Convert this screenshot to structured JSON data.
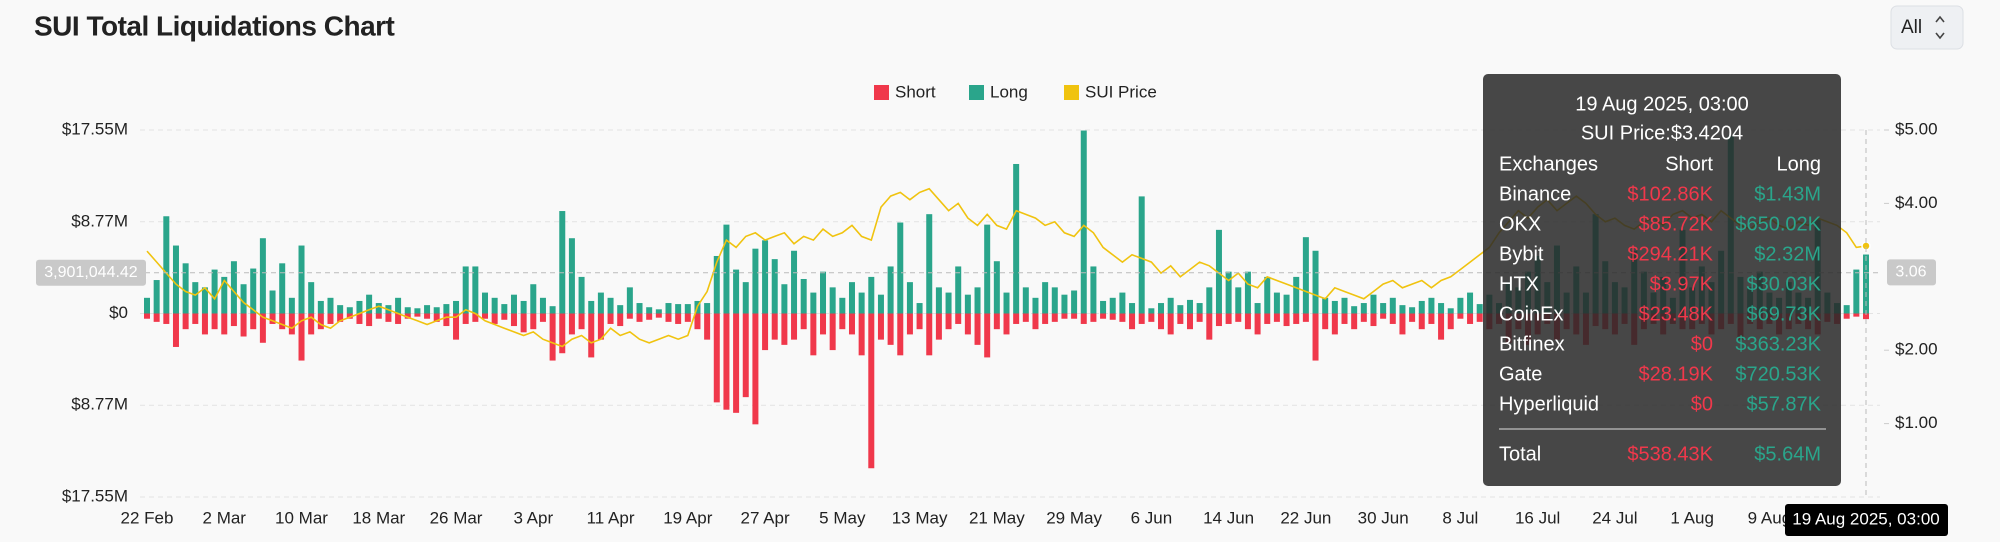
{
  "chart_data": {
    "type": "bar",
    "title": "SUI Total Liquidations Chart",
    "control": "All",
    "categories": [
      "22 Feb",
      null,
      null,
      null,
      null,
      null,
      null,
      null,
      "2 Mar",
      null,
      null,
      null,
      null,
      null,
      null,
      null,
      "10 Mar",
      null,
      null,
      null,
      null,
      null,
      null,
      null,
      "18 Mar",
      null,
      null,
      null,
      null,
      null,
      null,
      null,
      "26 Mar",
      null,
      null,
      null,
      null,
      null,
      null,
      null,
      "3 Apr",
      null,
      null,
      null,
      null,
      null,
      null,
      null,
      "11 Apr",
      null,
      null,
      null,
      null,
      null,
      null,
      null,
      "19 Apr",
      null,
      null,
      null,
      null,
      null,
      null,
      null,
      "27 Apr",
      null,
      null,
      null,
      null,
      null,
      null,
      null,
      "5 May",
      null,
      null,
      null,
      null,
      null,
      null,
      null,
      "13 May",
      null,
      null,
      null,
      null,
      null,
      null,
      null,
      "21 May",
      null,
      null,
      null,
      null,
      null,
      null,
      null,
      "29 May",
      null,
      null,
      null,
      null,
      null,
      null,
      null,
      "6 Jun",
      null,
      null,
      null,
      null,
      null,
      null,
      null,
      "14 Jun",
      null,
      null,
      null,
      null,
      null,
      null,
      null,
      "22 Jun",
      null,
      null,
      null,
      null,
      null,
      null,
      null,
      "30 Jun",
      null,
      null,
      null,
      null,
      null,
      null,
      null,
      "8 Jul",
      null,
      null,
      null,
      null,
      null,
      null,
      null,
      "16 Jul",
      null,
      null,
      null,
      null,
      null,
      null,
      null,
      "24 Jul",
      null,
      null,
      null,
      null,
      null,
      null,
      null,
      "1 Aug",
      null,
      null,
      null,
      null,
      null,
      null,
      null,
      "9 Aug",
      null,
      null,
      null,
      null,
      null,
      null,
      null,
      null,
      null,
      "19 Aug 2025, 03:00"
    ],
    "series": [
      {
        "name": "Short",
        "color": "#f0384b",
        "values": [
          -500000,
          -800000,
          -1000000,
          -3200000,
          -1500000,
          -1000000,
          -2000000,
          -1500000,
          -2000000,
          -1200000,
          -2200000,
          -1500000,
          -2800000,
          -1000000,
          -1500000,
          -2000000,
          -4500000,
          -2000000,
          -1500000,
          -1000000,
          -800000,
          -500000,
          -1000000,
          -1200000,
          -500000,
          -800000,
          -1000000,
          -500000,
          -300000,
          -500000,
          -800000,
          -1200000,
          -2500000,
          -1000000,
          -800000,
          -500000,
          -1000000,
          -600000,
          -1200000,
          -1800000,
          -1500000,
          -800000,
          -4500000,
          -3800000,
          -2000000,
          -1500000,
          -4200000,
          -2500000,
          -1000000,
          -1200000,
          -500000,
          -800000,
          -600000,
          -400000,
          -800000,
          -1000000,
          -800000,
          -1500000,
          -2500000,
          -8500000,
          -9200000,
          -9500000,
          -8000000,
          -10600000,
          -3500000,
          -2500000,
          -3000000,
          -2500000,
          -1500000,
          -4000000,
          -2000000,
          -3500000,
          -1500000,
          -2000000,
          -4000000,
          -14800000,
          -2500000,
          -3000000,
          -4000000,
          -2000000,
          -1500000,
          -4000000,
          -2500000,
          -1500000,
          -1000000,
          -2000000,
          -3000000,
          -4200000,
          -1500000,
          -2000000,
          -1000000,
          -800000,
          -1500000,
          -1000000,
          -800000,
          -500000,
          -500000,
          -1000000,
          -800000,
          -500000,
          -600000,
          -800000,
          -1500000,
          -1000000,
          -800000,
          -1500000,
          -2000000,
          -1000000,
          -1500000,
          -800000,
          -2500000,
          -1200000,
          -1000000,
          -800000,
          -1500000,
          -2000000,
          -1000000,
          -800000,
          -1200000,
          -1000000,
          -800000,
          -4500000,
          -1500000,
          -2000000,
          -1000000,
          -1500000,
          -800000,
          -1200000,
          -500000,
          -1000000,
          -2000000,
          -800000,
          -1500000,
          -1000000,
          -2500000,
          -1500000,
          -500000,
          -1000000,
          -800000,
          -1500000,
          -1000000,
          -2800000,
          -1500000,
          -3000000,
          -2000000,
          -1000000,
          -2500000,
          -1500000,
          -2000000,
          -3000000,
          -1200000,
          -1500000,
          -2000000,
          -1000000,
          -3000000,
          -1500000,
          -1000000,
          -2000000,
          -1000000,
          -1500000,
          -1500000,
          -1000000,
          -2000000,
          -1500000,
          -1000000,
          -2500000,
          -1000000,
          -1500000,
          -1000000,
          -2000000,
          -1500000,
          -1000000,
          -1500000,
          -2000000,
          -800000,
          -1000000,
          -500000,
          -300000,
          -538430
        ]
      },
      {
        "name": "Long",
        "color": "#2aa58b",
        "values": [
          1500000,
          3200000,
          9300000,
          6500000,
          4800000,
          3000000,
          2500000,
          4200000,
          3500000,
          5000000,
          2800000,
          4300000,
          7200000,
          2200000,
          4800000,
          1500000,
          6500000,
          3000000,
          1200000,
          1500000,
          800000,
          600000,
          1200000,
          1800000,
          1000000,
          800000,
          1500000,
          600000,
          500000,
          800000,
          600000,
          900000,
          1200000,
          4500000,
          4500000,
          2000000,
          1500000,
          900000,
          1800000,
          1200000,
          2800000,
          1500000,
          700000,
          9800000,
          7200000,
          3500000,
          1200000,
          2000000,
          1500000,
          800000,
          2500000,
          1000000,
          600000,
          400000,
          1000000,
          900000,
          900000,
          1200000,
          1000000,
          5500000,
          8500000,
          4200000,
          3000000,
          6200000,
          7000000,
          5200000,
          2800000,
          6000000,
          3300000,
          2000000,
          4000000,
          2500000,
          1500000,
          3000000,
          2000000,
          3500000,
          1800000,
          4500000,
          8700000,
          3000000,
          1000000,
          9500000,
          2500000,
          2000000,
          4500000,
          1800000,
          2500000,
          8500000,
          5000000,
          2000000,
          14300000,
          2500000,
          1500000,
          3000000,
          2500000,
          1800000,
          2200000,
          17500000,
          4500000,
          1200000,
          1500000,
          2000000,
          1000000,
          11200000,
          500000,
          1000000,
          1500000,
          800000,
          1300000,
          1000000,
          2500000,
          8000000,
          4000000,
          2500000,
          4000000,
          1000000,
          3500000,
          2000000,
          1800000,
          3500000,
          7300000,
          6000000,
          1500000,
          1200000,
          1500000,
          700000,
          1000000,
          1800000,
          1000000,
          1500000,
          800000,
          600000,
          1200000,
          1500000,
          1000000,
          500000,
          1500000,
          2000000,
          900000,
          1800000,
          1000000,
          3000000,
          2500000,
          4000000,
          5500000,
          3000000,
          6500000,
          2000000,
          4500000,
          2000000,
          9500000,
          5000000,
          3000000,
          2500000,
          6000000,
          4000000,
          2000000,
          3500000,
          1500000,
          8000000,
          2500000,
          4500000,
          3000000,
          6000000,
          17000000,
          3500000,
          2500000,
          4000000,
          2000000,
          1500000,
          3000000,
          2000000,
          1500000,
          9000000,
          2000000,
          1000000,
          800000,
          4200000,
          5640000
        ]
      },
      {
        "name": "SUI Price",
        "color": "#f0c30f",
        "type": "line",
        "axis": "y2",
        "values": [
          3.35,
          3.2,
          3.05,
          2.9,
          2.8,
          2.75,
          2.85,
          2.7,
          2.95,
          2.8,
          2.65,
          2.55,
          2.45,
          2.4,
          2.35,
          2.3,
          2.4,
          2.45,
          2.35,
          2.3,
          2.4,
          2.45,
          2.5,
          2.55,
          2.6,
          2.55,
          2.5,
          2.45,
          2.4,
          2.35,
          2.4,
          2.45,
          2.45,
          2.55,
          2.5,
          2.4,
          2.35,
          2.3,
          2.25,
          2.2,
          2.25,
          2.15,
          2.1,
          2.05,
          2.15,
          2.2,
          2.1,
          2.15,
          2.3,
          2.2,
          2.25,
          2.15,
          2.1,
          2.15,
          2.2,
          2.15,
          2.2,
          2.6,
          2.8,
          3.2,
          3.5,
          3.4,
          3.55,
          3.6,
          3.5,
          3.55,
          3.6,
          3.45,
          3.55,
          3.5,
          3.65,
          3.55,
          3.6,
          3.7,
          3.55,
          3.5,
          3.95,
          4.1,
          4.15,
          4.05,
          4.15,
          4.2,
          4.05,
          3.9,
          4.0,
          3.8,
          3.7,
          3.85,
          3.7,
          3.65,
          3.9,
          3.85,
          3.8,
          3.7,
          3.75,
          3.6,
          3.55,
          3.7,
          3.6,
          3.4,
          3.3,
          3.2,
          3.3,
          3.25,
          3.2,
          3.05,
          3.15,
          3.0,
          3.1,
          3.2,
          3.15,
          3.05,
          2.95,
          3.05,
          2.9,
          2.85,
          3.0,
          2.95,
          2.9,
          2.85,
          2.8,
          2.75,
          2.7,
          2.85,
          2.8,
          2.75,
          2.7,
          2.8,
          2.9,
          2.95,
          2.85,
          2.9,
          2.95,
          2.85,
          2.95,
          3.0,
          3.1,
          3.2,
          3.3,
          3.4,
          3.6,
          3.75,
          3.9,
          3.8,
          3.95,
          4.05,
          3.9,
          4.0,
          4.1,
          4.0,
          3.85,
          3.75,
          3.8,
          3.7,
          3.65,
          3.75,
          3.8,
          3.7,
          3.85,
          3.9,
          3.8,
          3.85,
          3.75,
          3.9,
          3.8,
          3.7,
          3.65,
          3.75,
          3.8,
          3.7,
          3.65,
          3.75,
          3.7,
          3.8,
          3.75,
          3.7,
          3.6,
          3.4,
          3.4204
        ]
      }
    ],
    "ylim": [
      -17550000,
      17550000
    ],
    "yticks": [
      {
        "value": -17550000,
        "label": "$17.55M"
      },
      {
        "value": -8770000,
        "label": "$8.77M"
      },
      {
        "value": 0,
        "label": "$0"
      },
      {
        "value": 8770000,
        "label": "$8.77M"
      },
      {
        "value": 17550000,
        "label": "$17.55M"
      }
    ],
    "y2lim": [
      0,
      5
    ],
    "y2ticks": [
      {
        "value": 1,
        "label": "$1.00"
      },
      {
        "value": 2,
        "label": "$2.00"
      },
      {
        "value": 4,
        "label": "$4.00"
      },
      {
        "value": 5,
        "label": "$5.00"
      }
    ],
    "grid": true,
    "legend": "top",
    "crosshair": {
      "y": {
        "value": 3901044.42,
        "label": "3,901,044.42"
      },
      "y2": {
        "value": 3.06,
        "label": "3.06"
      }
    },
    "tooltip": {
      "title": "19 Aug 2025, 03:00",
      "price": "SUI Price:$3.4204",
      "columns": [
        "Exchanges",
        "Short",
        "Long"
      ],
      "rows": [
        [
          "Binance",
          "$102.86K",
          "$1.43M"
        ],
        [
          "OKX",
          "$85.72K",
          "$650.02K"
        ],
        [
          "Bybit",
          "$294.21K",
          "$2.32M"
        ],
        [
          "HTX",
          "$3.97K",
          "$30.03K"
        ],
        [
          "CoinEx",
          "$23.48K",
          "$69.73K"
        ],
        [
          "Bitfinex",
          "$0",
          "$363.23K"
        ],
        [
          "Gate",
          "$28.19K",
          "$720.53K"
        ],
        [
          "Hyperliquid",
          "$0",
          "$57.87K"
        ]
      ],
      "total": [
        "Total",
        "$538.43K",
        "$5.64M"
      ]
    }
  }
}
